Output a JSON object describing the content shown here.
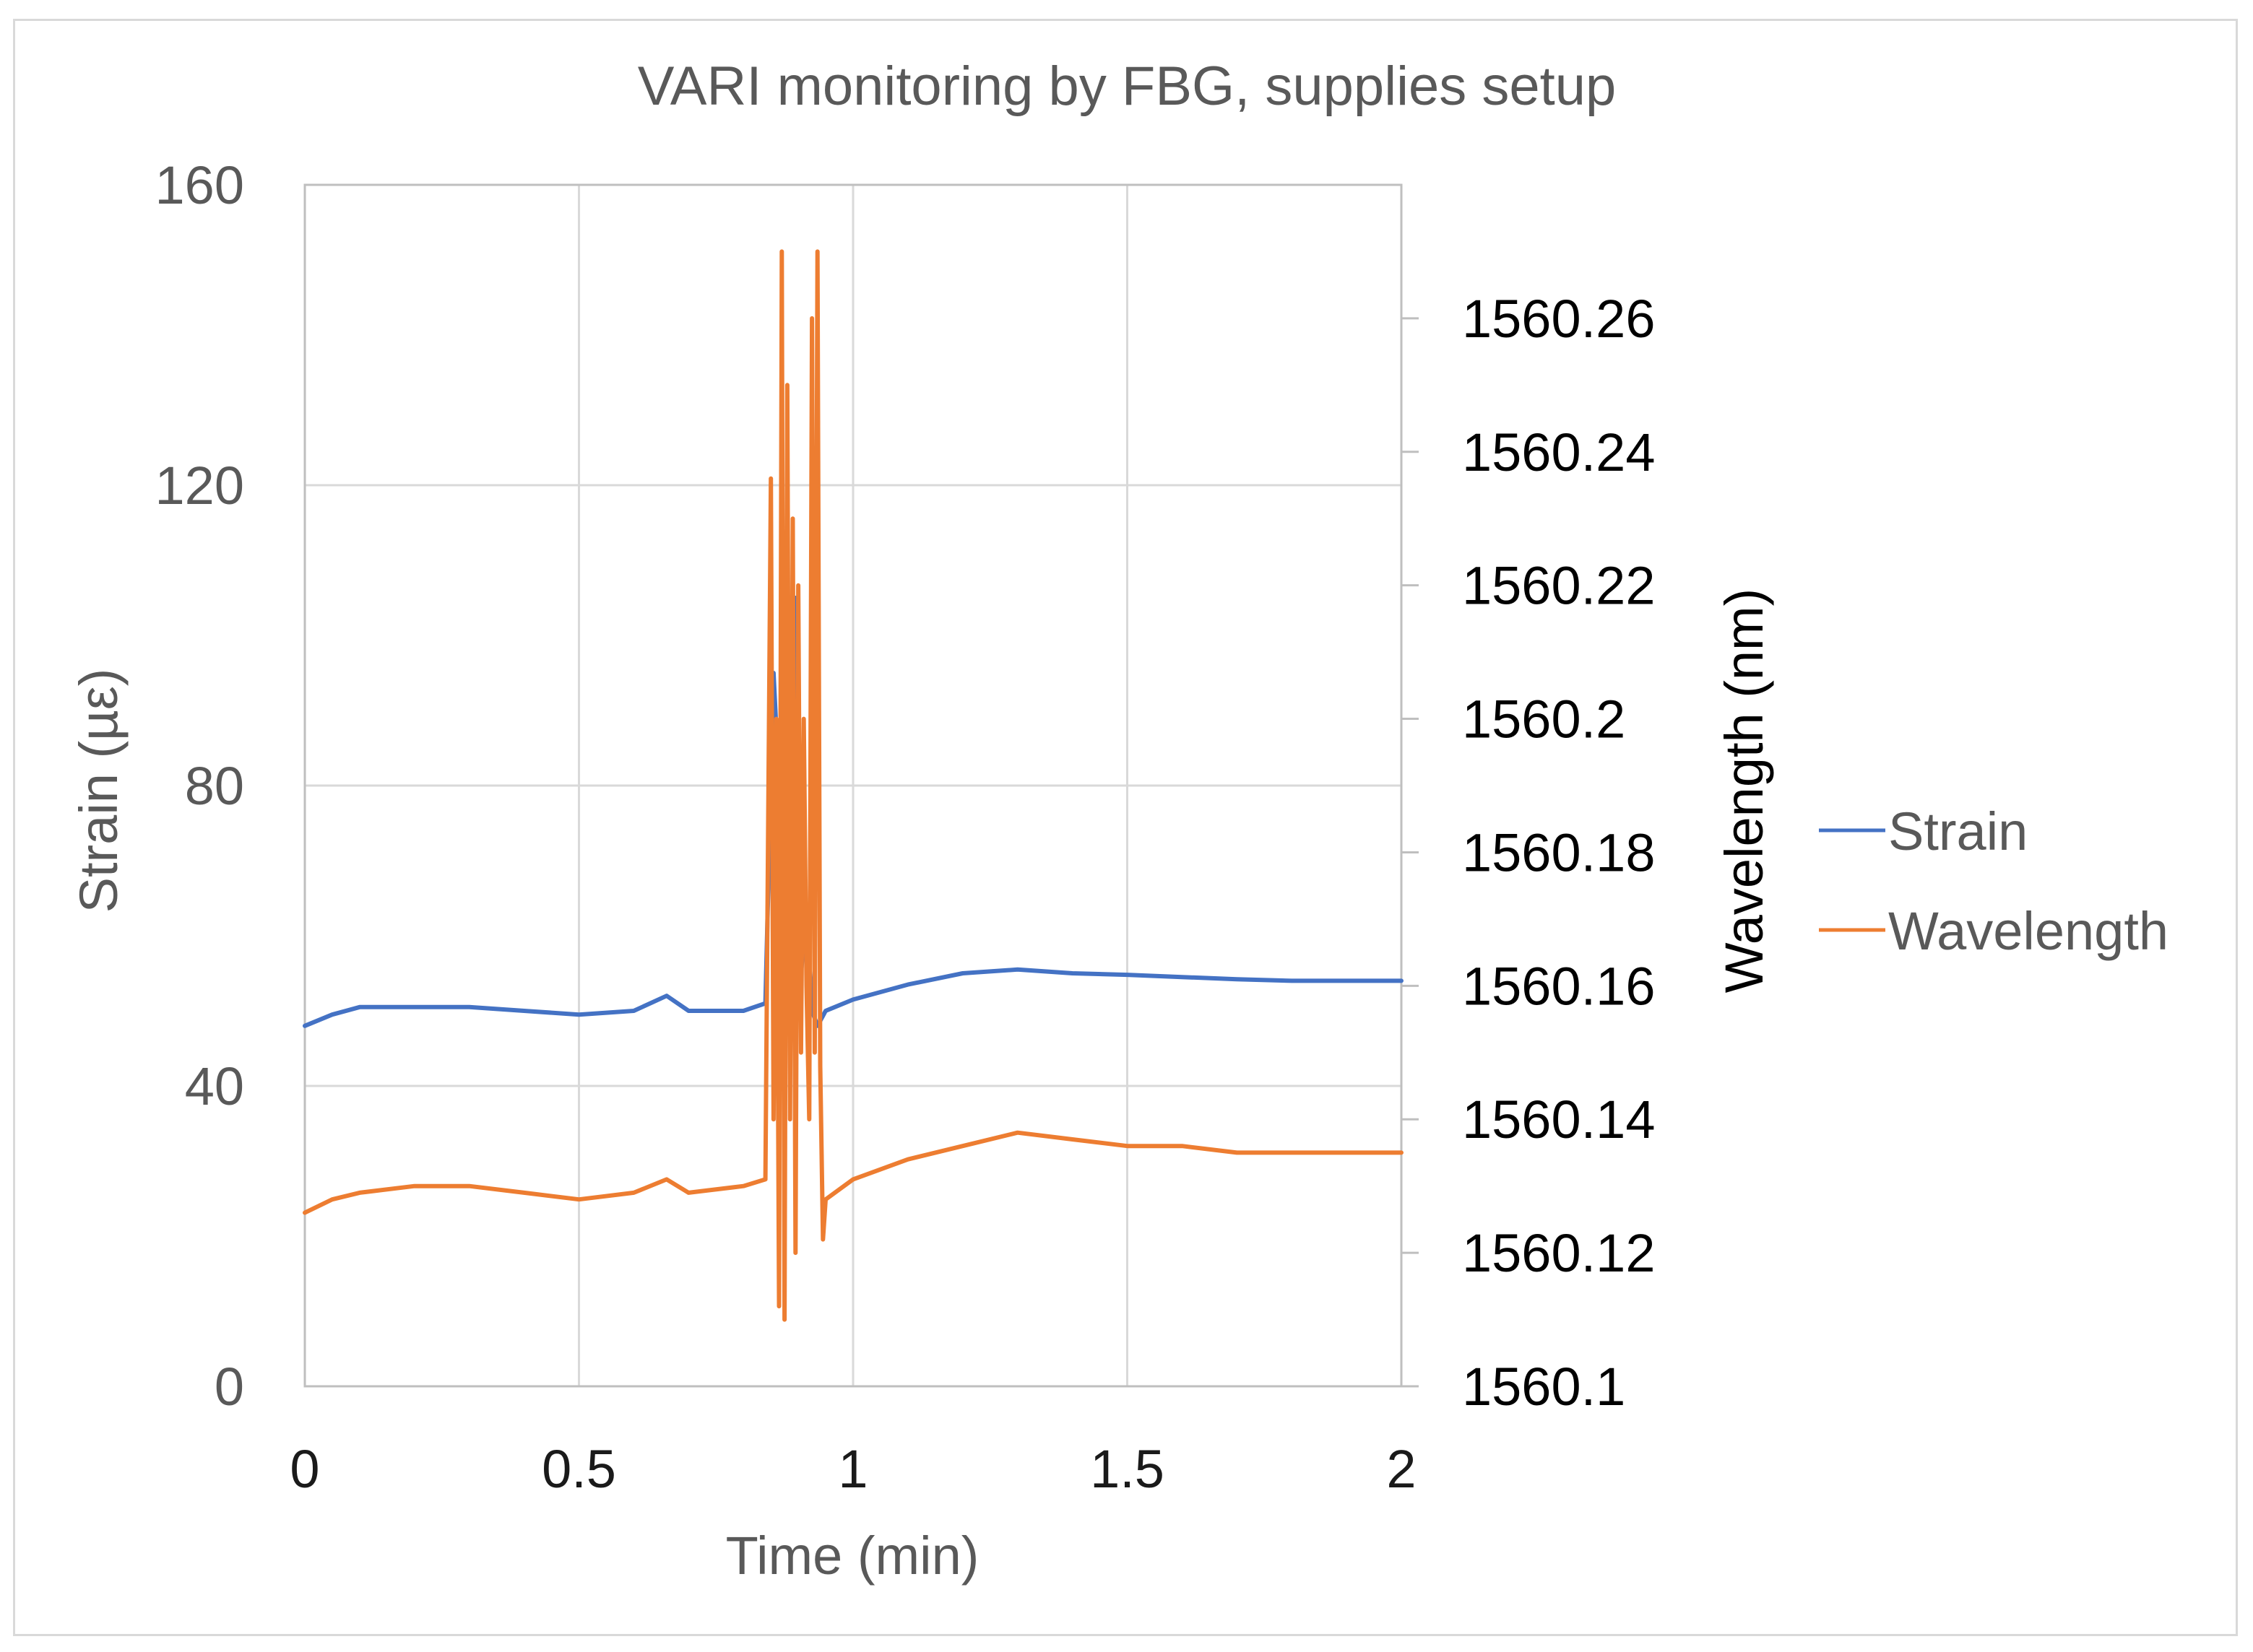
{
  "chart_data": {
    "type": "line",
    "title": "VARI monitoring by FBG, supplies setup",
    "xlabel": "Time (min)",
    "ylabel": "Strain (µε)",
    "y2label": "Wavelength (nm)",
    "xlim": [
      0,
      2
    ],
    "ylim": [
      0,
      160
    ],
    "y2lim": [
      1560.1,
      1560.28
    ],
    "x_ticks": [
      "0",
      "0.5",
      "1",
      "1.5",
      "2"
    ],
    "x_tick_values": [
      0,
      0.5,
      1,
      1.5,
      2
    ],
    "y_ticks": [
      "0",
      "40",
      "80",
      "120",
      "160"
    ],
    "y_tick_values": [
      0,
      40,
      80,
      120,
      160
    ],
    "y2_ticks": [
      "1560.1",
      "1560.12",
      "1560.14",
      "1560.16",
      "1560.18",
      "1560.2",
      "1560.22",
      "1560.24",
      "1560.26"
    ],
    "y2_tick_values": [
      1560.1,
      1560.12,
      1560.14,
      1560.16,
      1560.18,
      1560.2,
      1560.22,
      1560.24,
      1560.26
    ],
    "grid": true,
    "legend_position": "right",
    "series": [
      {
        "name": "Strain",
        "axis": "left",
        "color": "#4472C4",
        "x": [
          0,
          0.05,
          0.1,
          0.2,
          0.3,
          0.4,
          0.5,
          0.6,
          0.66,
          0.7,
          0.8,
          0.84,
          0.855,
          0.865,
          0.875,
          0.885,
          0.895,
          0.905,
          0.915,
          0.925,
          0.935,
          0.95,
          1.0,
          1.1,
          1.2,
          1.3,
          1.4,
          1.5,
          1.6,
          1.7,
          1.8,
          1.9,
          2.0
        ],
        "y": [
          48,
          49.5,
          50.5,
          50.5,
          50.5,
          50,
          49.5,
          50,
          52,
          50,
          50,
          51,
          95,
          80,
          100,
          70,
          105,
          55,
          63,
          50,
          48,
          50,
          51.5,
          53.5,
          55,
          55.5,
          55,
          54.8,
          54.5,
          54.2,
          54,
          54,
          54
        ]
      },
      {
        "name": "Wavelength",
        "axis": "right",
        "color": "#ED7D31",
        "x": [
          0,
          0.05,
          0.1,
          0.2,
          0.3,
          0.4,
          0.5,
          0.6,
          0.66,
          0.7,
          0.8,
          0.84,
          0.85,
          0.855,
          0.86,
          0.865,
          0.87,
          0.875,
          0.88,
          0.885,
          0.89,
          0.895,
          0.9,
          0.905,
          0.91,
          0.915,
          0.92,
          0.925,
          0.93,
          0.935,
          0.94,
          0.945,
          0.95,
          1.0,
          1.1,
          1.2,
          1.3,
          1.4,
          1.5,
          1.6,
          1.7,
          1.8,
          1.9,
          2.0
        ],
        "y": [
          1560.126,
          1560.128,
          1560.129,
          1560.13,
          1560.13,
          1560.129,
          1560.128,
          1560.129,
          1560.131,
          1560.129,
          1560.13,
          1560.131,
          1560.236,
          1560.14,
          1560.2,
          1560.112,
          1560.27,
          1560.11,
          1560.25,
          1560.14,
          1560.23,
          1560.12,
          1560.22,
          1560.15,
          1560.2,
          1560.16,
          1560.14,
          1560.26,
          1560.15,
          1560.27,
          1560.148,
          1560.122,
          1560.128,
          1560.131,
          1560.134,
          1560.136,
          1560.138,
          1560.137,
          1560.136,
          1560.136,
          1560.135,
          1560.135,
          1560.135,
          1560.135
        ]
      }
    ]
  }
}
